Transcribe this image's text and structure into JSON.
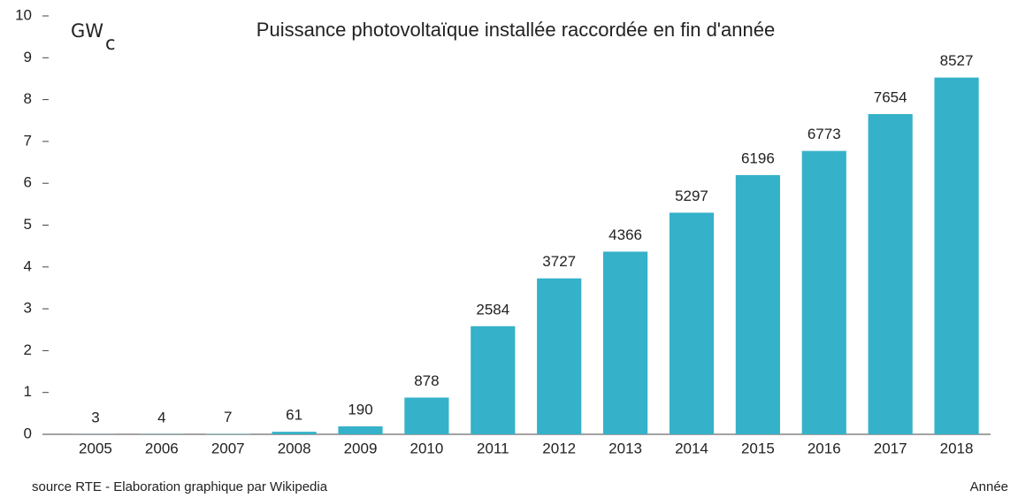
{
  "chart_data": {
    "type": "bar",
    "title": "Puissance photovoltaïque installée raccordée en fin d'année",
    "ylabel": "GW",
    "ylabel_subscript": "c",
    "xlabel": "Année",
    "source": "source RTE - Elaboration graphique par Wikipedia",
    "categories": [
      "2005",
      "2006",
      "2007",
      "2008",
      "2009",
      "2010",
      "2011",
      "2012",
      "2013",
      "2014",
      "2015",
      "2016",
      "2017",
      "2018"
    ],
    "values": [
      0.003,
      0.004,
      0.007,
      0.061,
      0.19,
      0.878,
      2.584,
      3.727,
      4.366,
      5.297,
      6.196,
      6.773,
      7.654,
      8.527
    ],
    "value_labels": [
      "3",
      "4",
      "7",
      "61",
      "190",
      "878",
      "2584",
      "3727",
      "4366",
      "5297",
      "6196",
      "6773",
      "7654",
      "8527"
    ],
    "color": "#35b1c9",
    "ylim": [
      0,
      10
    ],
    "yticks": [
      0,
      1,
      2,
      3,
      4,
      5,
      6,
      7,
      8,
      9,
      10
    ],
    "grid": false
  }
}
